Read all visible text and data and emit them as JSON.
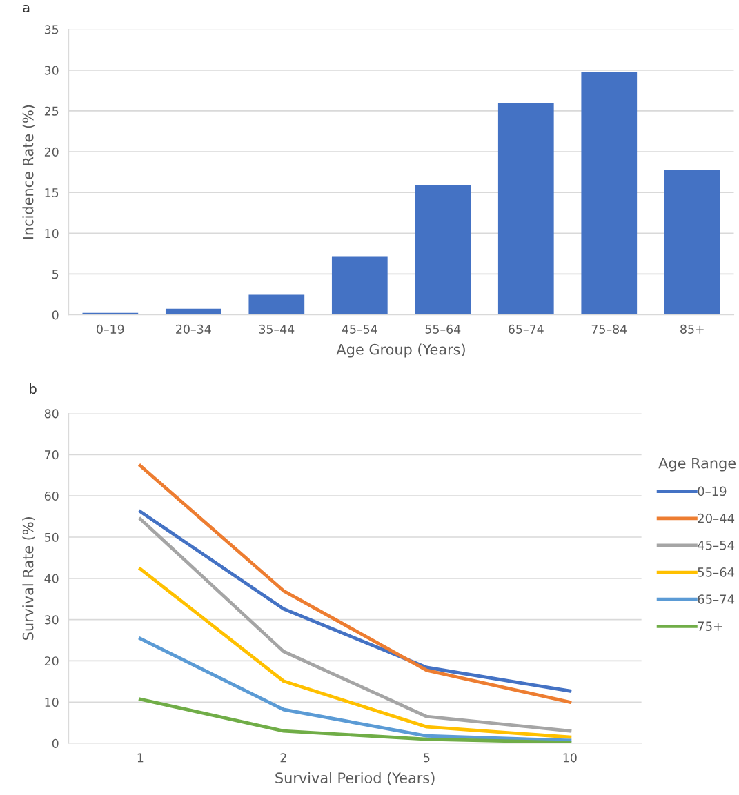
{
  "chart_data": [
    {
      "type": "bar",
      "xlabel": "Age Group (Years)",
      "ylabel": "Incidence Rate (%)",
      "annotations": [
        "a"
      ],
      "categories": [
        "0–19",
        "20–34",
        "35–44",
        "45–54",
        "55–64",
        "65–74",
        "75–84",
        "85+"
      ],
      "values": [
        0.25,
        0.75,
        2.45,
        7.1,
        15.9,
        25.95,
        29.75,
        17.75
      ],
      "color": "#4472c4",
      "ylim": [
        0,
        35
      ],
      "yticks": [
        0,
        5,
        10,
        15,
        20,
        25,
        30,
        35
      ],
      "grid": "y",
      "legend": false
    },
    {
      "type": "line",
      "xlabel": "Survival Period (Years)",
      "ylabel": "Survival Rate (%)",
      "annotations": [
        "b"
      ],
      "legend_title": "Age Range",
      "legend": "right",
      "grid": "y",
      "marker": "none",
      "line_style": "solid",
      "categories": [
        "1",
        "2",
        "5",
        "10"
      ],
      "ylim": [
        0,
        80
      ],
      "yticks": [
        0,
        10,
        20,
        30,
        40,
        50,
        60,
        70,
        80
      ],
      "series": [
        {
          "name": "0–19",
          "color": "#4472c4",
          "values": [
            56.2,
            32.6,
            18.4,
            12.7
          ]
        },
        {
          "name": "20–44",
          "color": "#ed7d31",
          "values": [
            67.3,
            37,
            17.7,
            10
          ]
        },
        {
          "name": "45–54",
          "color": "#a5a5a5",
          "values": [
            54.4,
            22.3,
            6.5,
            3.0
          ]
        },
        {
          "name": "55–64",
          "color": "#ffc000",
          "values": [
            42.3,
            15.1,
            4.0,
            1.5
          ]
        },
        {
          "name": "65–74",
          "color": "#5b9bd5",
          "values": [
            25.4,
            8.2,
            1.8,
            0.7
          ]
        },
        {
          "name": "75+",
          "color": "#70ad47",
          "values": [
            10.7,
            3.0,
            1.0,
            0.2
          ]
        }
      ]
    }
  ]
}
